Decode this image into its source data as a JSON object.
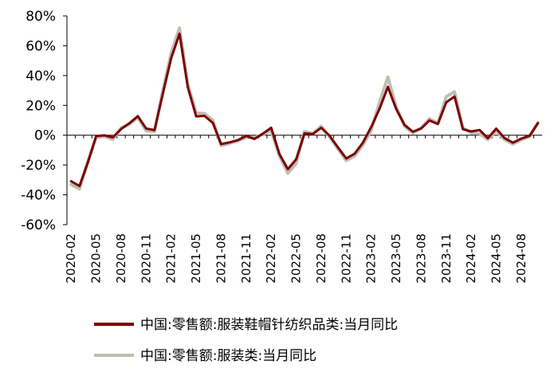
{
  "chart_data": {
    "type": "line",
    "xlabel": "",
    "ylabel": "",
    "ylim": [
      -60,
      80
    ],
    "yticks": [
      "80%",
      "60%",
      "40%",
      "20%",
      "0%",
      "-20%",
      "-40%",
      "-60%"
    ],
    "grid": false,
    "legend_position": "bottom",
    "x": [
      "2020-02",
      "2020-03",
      "2020-04",
      "2020-05",
      "2020-06",
      "2020-07",
      "2020-08",
      "2020-09",
      "2020-10",
      "2020-11",
      "2020-12",
      "2021-01",
      "2021-02",
      "2021-03",
      "2021-04",
      "2021-05",
      "2021-06",
      "2021-07",
      "2021-08",
      "2021-09",
      "2021-10",
      "2021-11",
      "2021-12",
      "2022-01",
      "2022-02",
      "2022-03",
      "2022-04",
      "2022-05",
      "2022-06",
      "2022-07",
      "2022-08",
      "2022-09",
      "2022-10",
      "2022-11",
      "2022-12",
      "2023-01",
      "2023-02",
      "2023-03",
      "2023-04",
      "2023-05",
      "2023-06",
      "2023-07",
      "2023-08",
      "2023-09",
      "2023-10",
      "2023-11",
      "2023-12",
      "2024-01",
      "2024-02",
      "2024-03",
      "2024-04",
      "2024-05",
      "2024-06",
      "2024-07",
      "2024-08",
      "2024-09",
      "2024-10"
    ],
    "xtick_labels": [
      "2020-02",
      "2020-05",
      "2020-08",
      "2020-11",
      "2021-02",
      "2021-05",
      "2021-08",
      "2021-11",
      "2022-02",
      "2022-05",
      "2022-08",
      "2022-11",
      "2023-02",
      "2023-05",
      "2023-08",
      "2023-11",
      "2024-02",
      "2024-05",
      "2024-08"
    ],
    "series": [
      {
        "name": "中国:零售额:服装鞋帽针纺织品类:当月同比",
        "color": "#7a0000",
        "values": [
          -30.9,
          -34.1,
          -18.5,
          -0.6,
          -0.1,
          -1.5,
          4.2,
          8.0,
          12.8,
          4.5,
          3.4,
          27.6,
          51.6,
          68.1,
          32.1,
          12.6,
          13.0,
          8.2,
          -6.0,
          -4.8,
          -3.3,
          -0.5,
          -2.5,
          1.0,
          5.0,
          -12.7,
          -22.8,
          -16.2,
          1.2,
          0.8,
          5.0,
          -0.3,
          -8.0,
          -15.6,
          -12.5,
          -5.0,
          5.4,
          17.7,
          32.4,
          17.6,
          6.9,
          2.3,
          4.5,
          9.9,
          7.5,
          22.0,
          26.0,
          4.0,
          2.5,
          3.5,
          -2.0,
          4.4,
          -1.9,
          -5.0,
          -2.3,
          -0.4,
          8.0
        ]
      },
      {
        "name": "中国:零售额:服装类:当月同比",
        "color": "#c0bdb2",
        "values": [
          -33.0,
          -36.0,
          -18.0,
          -1.5,
          -0.8,
          -2.8,
          4.8,
          7.5,
          12.0,
          3.0,
          2.5,
          30.0,
          55.0,
          72.0,
          34.0,
          15.0,
          14.5,
          10.0,
          -7.0,
          -5.5,
          -3.8,
          -1.5,
          -1.5,
          0.5,
          3.0,
          -14.0,
          -25.5,
          -19.0,
          2.5,
          1.0,
          6.0,
          -1.0,
          -9.0,
          -17.0,
          -14.0,
          -6.5,
          3.0,
          22.0,
          39.0,
          19.0,
          6.0,
          1.5,
          5.0,
          11.0,
          8.0,
          26.0,
          29.0,
          5.0,
          1.5,
          1.0,
          -3.0,
          3.0,
          -3.0,
          -6.0,
          -3.0,
          -1.0,
          8.5
        ]
      }
    ]
  }
}
